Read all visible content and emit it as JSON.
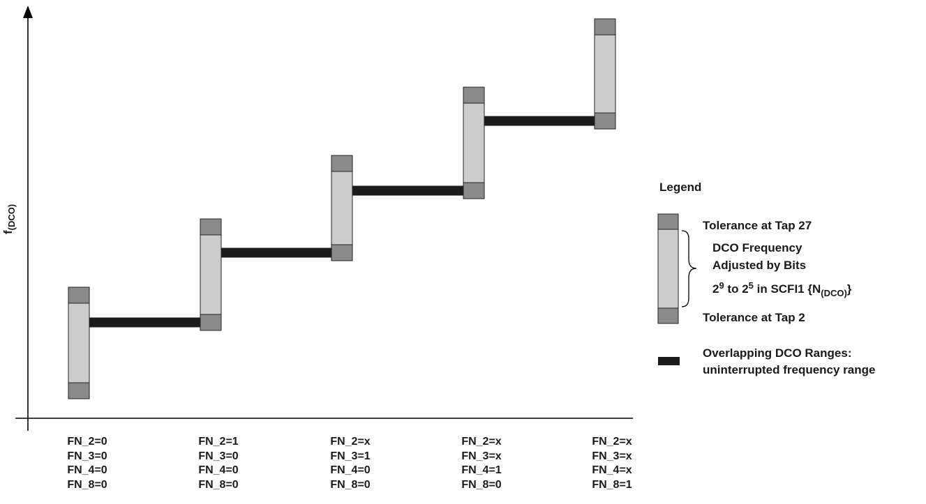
{
  "y_axis_label": {
    "base": "f",
    "sub": "(DCO)"
  },
  "steps": [
    {
      "settings": [
        "FN_2=0",
        "FN_3=0",
        "FN_4=0",
        "FN_8=0"
      ]
    },
    {
      "settings": [
        "FN_2=1",
        "FN_3=0",
        "FN_4=0",
        "FN_8=0"
      ]
    },
    {
      "settings": [
        "FN_2=x",
        "FN_3=1",
        "FN_4=0",
        "FN_8=0"
      ]
    },
    {
      "settings": [
        "FN_2=x",
        "FN_3=x",
        "FN_4=1",
        "FN_8=0"
      ]
    },
    {
      "settings": [
        "FN_2=x",
        "FN_3=x",
        "FN_4=x",
        "FN_8=1"
      ]
    }
  ],
  "legend": {
    "title": "Legend",
    "tolerance_top": "Tolerance at Tap 27",
    "freq_line1": "DCO Frequency",
    "freq_line2": "Adjusted by Bits",
    "freq_line3_a": "2",
    "freq_line3_sup1": "9",
    "freq_line3_b": " to 2",
    "freq_line3_sup2": "5",
    "freq_line3_c": " in SCFI1 {N",
    "freq_line3_sub": "(DCO)",
    "freq_line3_d": "}",
    "tolerance_bottom": "Tolerance at Tap 2",
    "overlap_line1": "Overlapping DCO Ranges:",
    "overlap_line2": "uninterrupted frequency range"
  },
  "colors": {
    "tolerance": "#8a8a8a",
    "range": "#cccccc",
    "overlap": "#1c1c1c",
    "axis": "#000000"
  }
}
